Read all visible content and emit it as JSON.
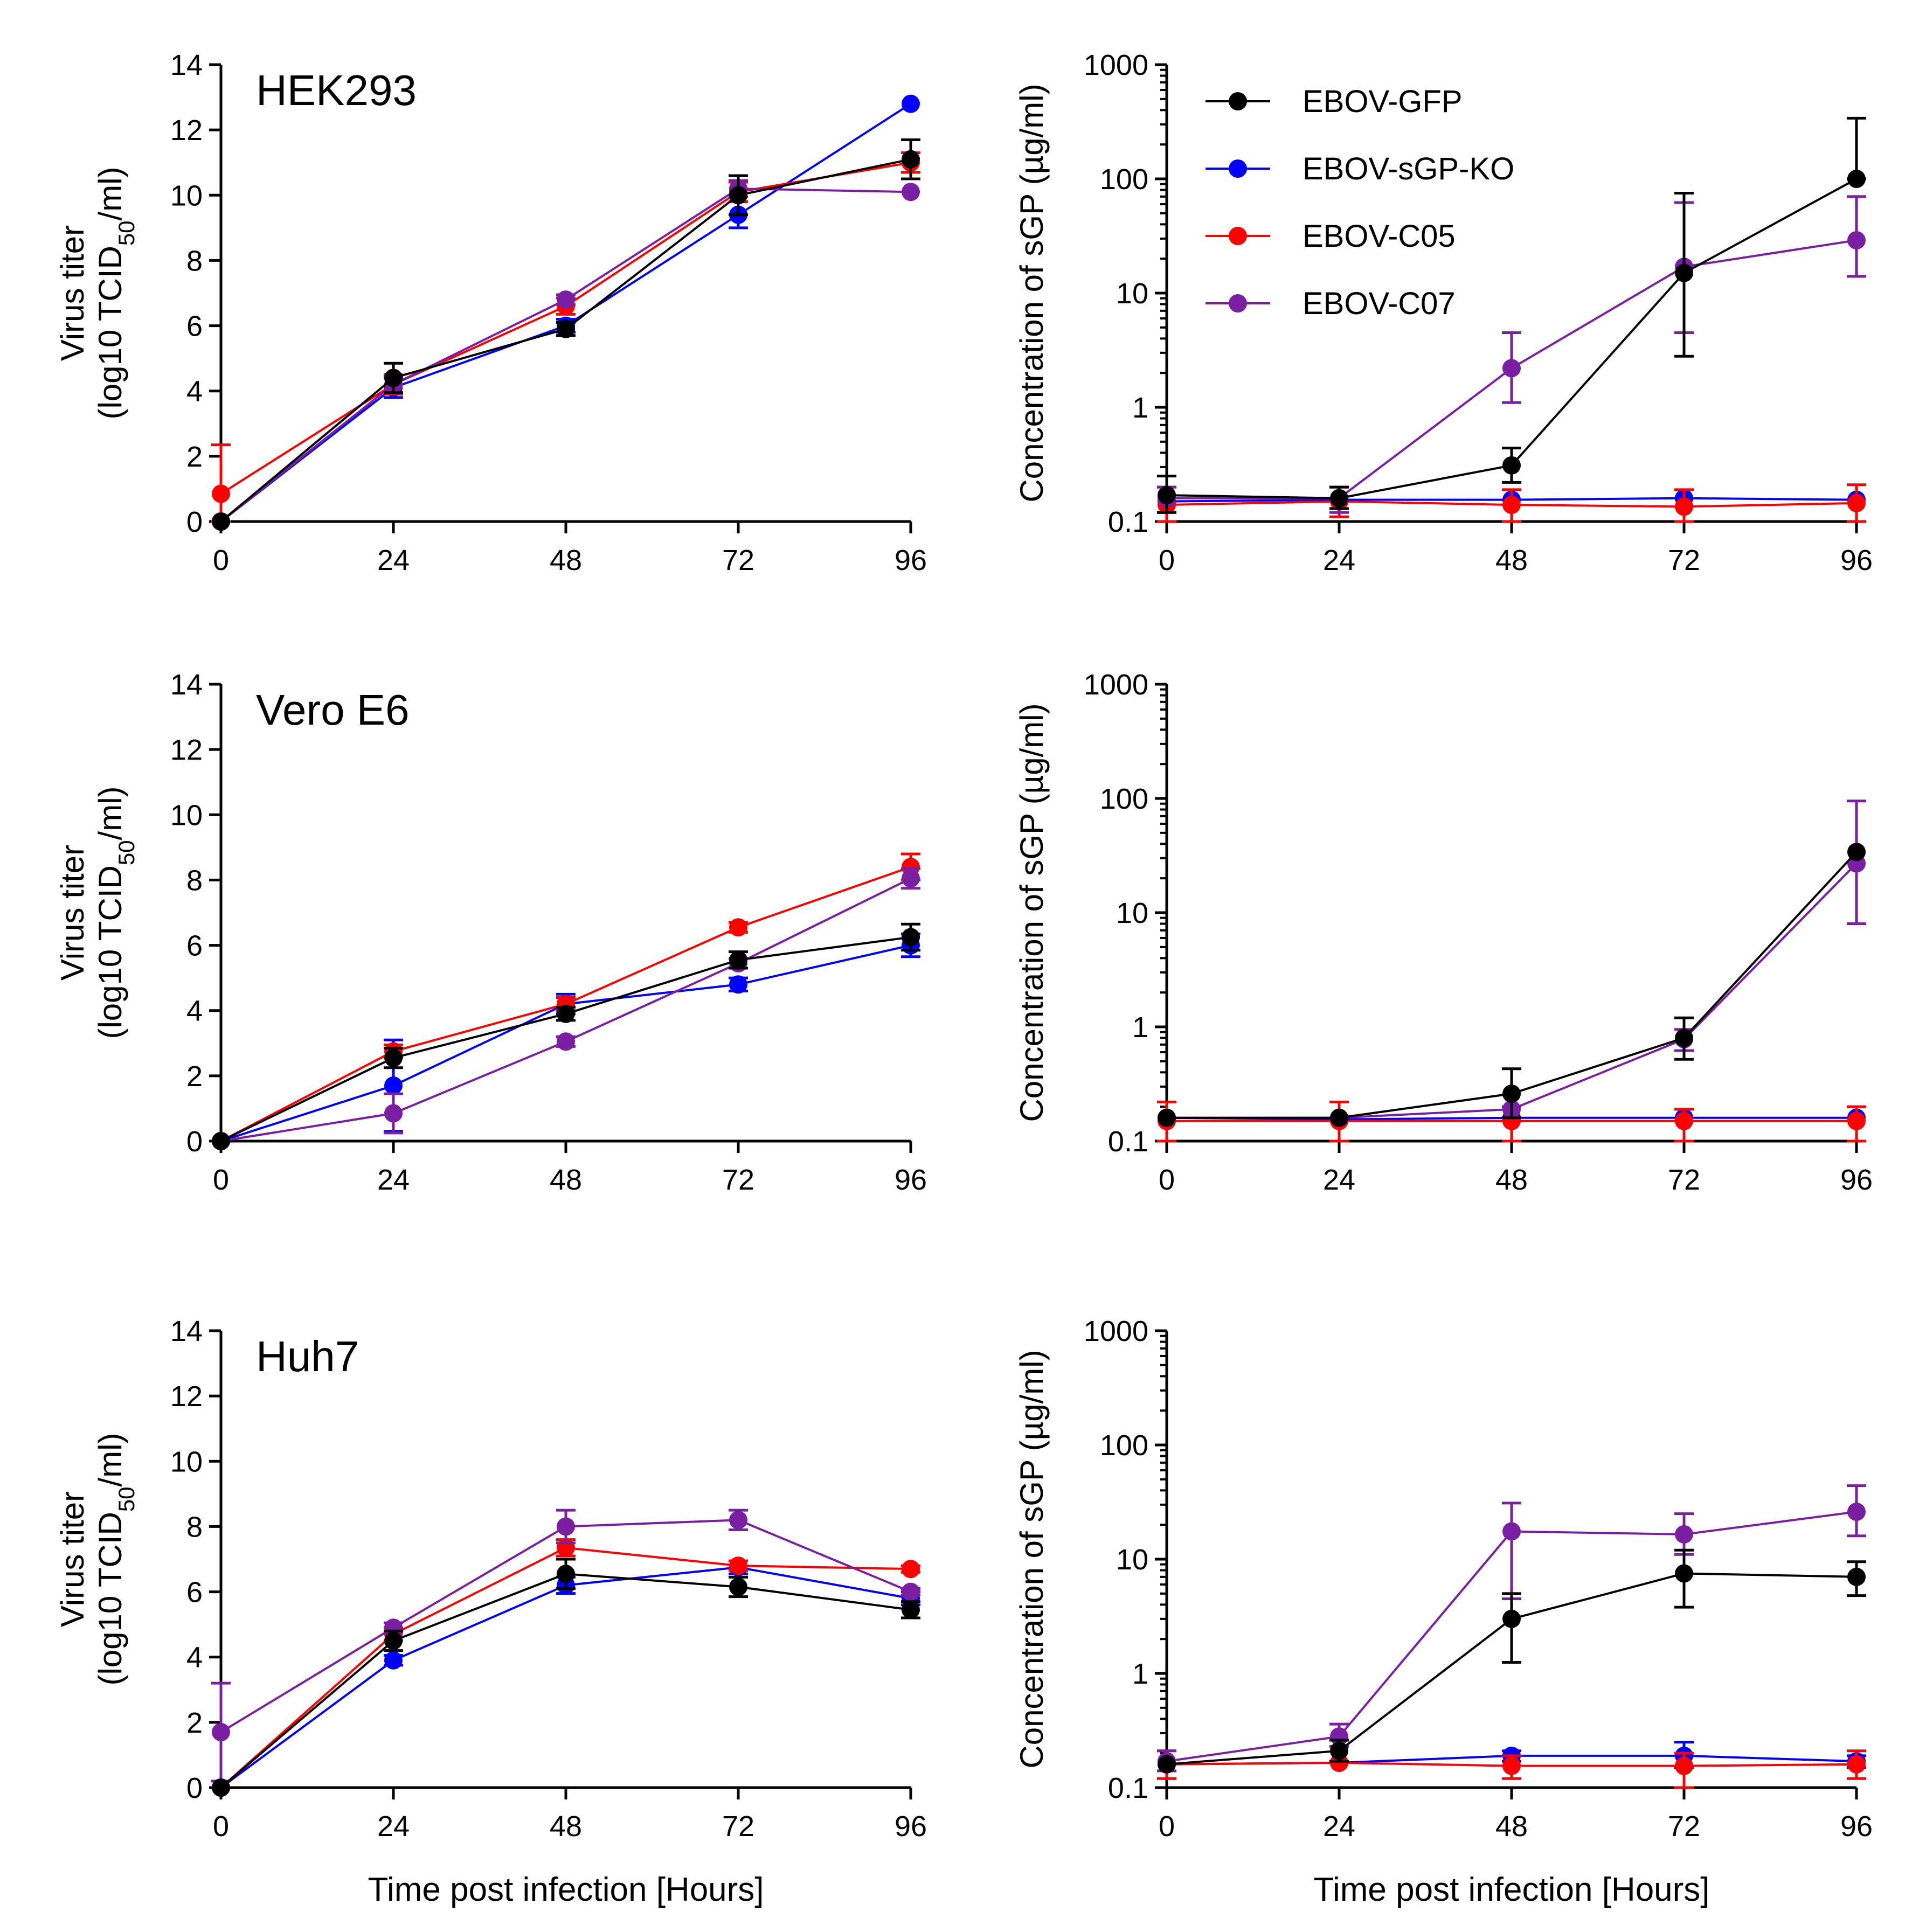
{
  "colors": {
    "EBOV-GFP": "#000000",
    "EBOV-sGP-KO": "#0000ff",
    "EBOV-C05": "#ff0000",
    "EBOV-C07": "#7b1fa2"
  },
  "legend": [
    "EBOV-GFP",
    "EBOV-sGP-KO",
    "EBOV-C05",
    "EBOV-C07"
  ],
  "chart_data": [
    {
      "type": "line",
      "panel": "HEK293 virus titer",
      "title": "HEK293",
      "ylabel_line1": "Virus titer",
      "ylabel_line2": "(log10  TCID",
      "ylabel_sub": "50",
      "ylabel_end": "/ml)",
      "xlabel": "",
      "x": [
        0,
        24,
        48,
        72,
        96
      ],
      "xticks": [
        "0",
        "24",
        "48",
        "72",
        "96"
      ],
      "yscale": "linear",
      "ylim": [
        0,
        14
      ],
      "yticks": [
        "0",
        "2",
        "4",
        "6",
        "8",
        "10",
        "12",
        "14"
      ],
      "series": [
        {
          "name": "EBOV-GFP",
          "values": [
            0,
            4.4,
            5.9,
            10.0,
            11.1
          ],
          "err": [
            0,
            0.45,
            0.2,
            0.6,
            0.6
          ]
        },
        {
          "name": "EBOV-sGP-KO",
          "values": [
            0,
            4.1,
            6.0,
            9.4,
            12.8
          ],
          "err": [
            0,
            0.3,
            0.2,
            0.4,
            0
          ]
        },
        {
          "name": "EBOV-C05",
          "values": [
            0.85,
            4.2,
            6.6,
            10.1,
            11.0
          ],
          "err": [
            1.5,
            0.3,
            0.25,
            0.3,
            0.3
          ]
        },
        {
          "name": "EBOV-C07",
          "values": [
            0,
            4.2,
            6.8,
            10.2,
            10.1
          ],
          "err": [
            0,
            0.25,
            0.15,
            0.25,
            0
          ]
        }
      ]
    },
    {
      "type": "line",
      "panel": "HEK293 sGP",
      "title": "",
      "ylabel_line1": "Concentration of sGP (µg/ml)",
      "xlabel": "",
      "x": [
        0,
        24,
        48,
        72,
        96
      ],
      "xticks": [
        "0",
        "24",
        "48",
        "72",
        "96"
      ],
      "yscale": "log",
      "ylim": [
        0.1,
        1000
      ],
      "yticks": [
        "0.1",
        "1",
        "10",
        "100",
        "1000"
      ],
      "show_legend": true,
      "series": [
        {
          "name": "EBOV-GFP",
          "values": [
            0.17,
            0.16,
            0.31,
            15,
            100
          ],
          "err_lo": [
            0.12,
            0.13,
            0.22,
            2.8,
            100
          ],
          "err_hi": [
            0.25,
            0.2,
            0.44,
            75,
            340
          ]
        },
        {
          "name": "EBOV-sGP-KO",
          "values": [
            0.15,
            0.155,
            0.155,
            0.16,
            0.155
          ],
          "err_lo": [
            0.15,
            0.155,
            0.155,
            0.16,
            0.155
          ],
          "err_hi": [
            0.15,
            0.155,
            0.155,
            0.16,
            0.155
          ]
        },
        {
          "name": "EBOV-C05",
          "values": [
            0.14,
            0.15,
            0.14,
            0.135,
            0.145
          ],
          "err_lo": [
            0.1,
            0.11,
            0.1,
            0.1,
            0.1
          ],
          "err_hi": [
            0.2,
            0.2,
            0.19,
            0.19,
            0.21
          ]
        },
        {
          "name": "EBOV-C07",
          "values": [
            0.16,
            0.16,
            2.2,
            17,
            29
          ],
          "err_lo": [
            0.12,
            0.12,
            1.1,
            4.5,
            14
          ],
          "err_hi": [
            0.2,
            0.2,
            4.5,
            62,
            70
          ]
        }
      ]
    },
    {
      "type": "line",
      "panel": "Vero E6 virus titer",
      "title": "Vero E6",
      "ylabel_line1": "Virus titer",
      "ylabel_line2": "(log10  TCID",
      "ylabel_sub": "50",
      "ylabel_end": "/ml)",
      "xlabel": "",
      "x": [
        0,
        24,
        48,
        72,
        96
      ],
      "xticks": [
        "0",
        "24",
        "48",
        "72",
        "96"
      ],
      "yscale": "linear",
      "ylim": [
        0,
        14
      ],
      "yticks": [
        "0",
        "2",
        "4",
        "6",
        "8",
        "10",
        "12",
        "14"
      ],
      "series": [
        {
          "name": "EBOV-GFP",
          "values": [
            0,
            2.55,
            3.9,
            5.55,
            6.25
          ],
          "err": [
            0,
            0.3,
            0.2,
            0.25,
            0.4
          ]
        },
        {
          "name": "EBOV-sGP-KO",
          "values": [
            0,
            1.7,
            4.2,
            4.8,
            6.0
          ],
          "err": [
            0,
            1.4,
            0.3,
            0.2,
            0.35
          ]
        },
        {
          "name": "EBOV-C05",
          "values": [
            0,
            2.75,
            4.2,
            6.55,
            8.4
          ],
          "err": [
            0,
            0.2,
            0.2,
            0.15,
            0.4
          ]
        },
        {
          "name": "EBOV-C07",
          "values": [
            0,
            0.85,
            3.05,
            5.45,
            8.05
          ],
          "err": [
            0,
            0.6,
            0.15,
            0.15,
            0.3
          ]
        }
      ]
    },
    {
      "type": "line",
      "panel": "Vero E6 sGP",
      "title": "",
      "ylabel_line1": "Concentration of sGP (µg/ml)",
      "xlabel": "",
      "x": [
        0,
        24,
        48,
        72,
        96
      ],
      "xticks": [
        "0",
        "24",
        "48",
        "72",
        "96"
      ],
      "yscale": "log",
      "ylim": [
        0.1,
        1000
      ],
      "yticks": [
        "0.1",
        "1",
        "10",
        "100",
        "1000"
      ],
      "series": [
        {
          "name": "EBOV-GFP",
          "values": [
            0.16,
            0.16,
            0.26,
            0.8,
            34
          ],
          "err_lo": [
            0.16,
            0.16,
            0.16,
            0.52,
            34
          ],
          "err_hi": [
            0.16,
            0.16,
            0.43,
            1.2,
            34
          ]
        },
        {
          "name": "EBOV-sGP-KO",
          "values": [
            0.16,
            0.155,
            0.16,
            0.16,
            0.16
          ],
          "err_lo": [
            0.16,
            0.155,
            0.16,
            0.16,
            0.16
          ],
          "err_hi": [
            0.16,
            0.155,
            0.16,
            0.16,
            0.16
          ]
        },
        {
          "name": "EBOV-C05",
          "values": [
            0.15,
            0.15,
            0.15,
            0.15,
            0.15
          ],
          "err_lo": [
            0.1,
            0.1,
            0.1,
            0.1,
            0.1
          ],
          "err_hi": [
            0.22,
            0.22,
            0.2,
            0.19,
            0.2
          ]
        },
        {
          "name": "EBOV-C07",
          "values": [
            0.16,
            0.16,
            0.19,
            0.78,
            27
          ],
          "err_lo": [
            0.16,
            0.16,
            0.16,
            0.62,
            8
          ],
          "err_hi": [
            0.16,
            0.16,
            0.2,
            0.95,
            95
          ]
        }
      ]
    },
    {
      "type": "line",
      "panel": "Huh7 virus titer",
      "title": "Huh7",
      "ylabel_line1": "Virus titer",
      "ylabel_line2": "(log10  TCID",
      "ylabel_sub": "50",
      "ylabel_end": "/ml)",
      "xlabel": "Time post infection [Hours]",
      "x": [
        0,
        24,
        48,
        72,
        96
      ],
      "xticks": [
        "0",
        "24",
        "48",
        "72",
        "96"
      ],
      "yscale": "linear",
      "ylim": [
        0,
        14
      ],
      "yticks": [
        "0",
        "2",
        "4",
        "6",
        "8",
        "10",
        "12",
        "14"
      ],
      "series": [
        {
          "name": "EBOV-GFP",
          "values": [
            0,
            4.5,
            6.55,
            6.15,
            5.45
          ],
          "err": [
            0,
            0.3,
            0.45,
            0.3,
            0.25
          ]
        },
        {
          "name": "EBOV-sGP-KO",
          "values": [
            0,
            3.9,
            6.2,
            6.75,
            5.8
          ],
          "err": [
            0,
            0.15,
            0.25,
            0.2,
            0.2
          ]
        },
        {
          "name": "EBOV-C05",
          "values": [
            0,
            4.7,
            7.35,
            6.8,
            6.7
          ],
          "err": [
            0,
            0.2,
            0.25,
            0.15,
            0.1
          ]
        },
        {
          "name": "EBOV-C07",
          "values": [
            1.7,
            4.9,
            8.0,
            8.2,
            6.0
          ],
          "err": [
            1.5,
            0.15,
            0.5,
            0.3,
            0.1
          ]
        }
      ]
    },
    {
      "type": "line",
      "panel": "Huh7 sGP",
      "title": "",
      "ylabel_line1": "Concentration of sGP (µg/ml)",
      "xlabel": "Time post infection [Hours]",
      "x": [
        0,
        24,
        48,
        72,
        96
      ],
      "xticks": [
        "0",
        "24",
        "48",
        "72",
        "96"
      ],
      "yscale": "log",
      "ylim": [
        0.1,
        1000
      ],
      "yticks": [
        "0.1",
        "1",
        "10",
        "100",
        "1000"
      ],
      "series": [
        {
          "name": "EBOV-GFP",
          "values": [
            0.16,
            0.21,
            3.0,
            7.5,
            7.0
          ],
          "err_lo": [
            0.16,
            0.17,
            1.25,
            3.8,
            4.8
          ],
          "err_hi": [
            0.16,
            0.26,
            5.0,
            12,
            9.5
          ]
        },
        {
          "name": "EBOV-sGP-KO",
          "values": [
            0.16,
            0.165,
            0.19,
            0.19,
            0.17
          ],
          "err_lo": [
            0.16,
            0.165,
            0.17,
            0.15,
            0.15
          ],
          "err_hi": [
            0.16,
            0.165,
            0.21,
            0.25,
            0.19
          ]
        },
        {
          "name": "EBOV-C05",
          "values": [
            0.16,
            0.165,
            0.155,
            0.155,
            0.16
          ],
          "err_lo": [
            0.12,
            0.165,
            0.12,
            0.1,
            0.12
          ],
          "err_hi": [
            0.21,
            0.165,
            0.19,
            0.2,
            0.21
          ]
        },
        {
          "name": "EBOV-C07",
          "values": [
            0.17,
            0.28,
            17.5,
            16.5,
            26
          ],
          "err_lo": [
            0.14,
            0.23,
            4.5,
            11,
            16
          ],
          "err_hi": [
            0.21,
            0.36,
            31,
            25,
            44
          ]
        }
      ]
    }
  ]
}
